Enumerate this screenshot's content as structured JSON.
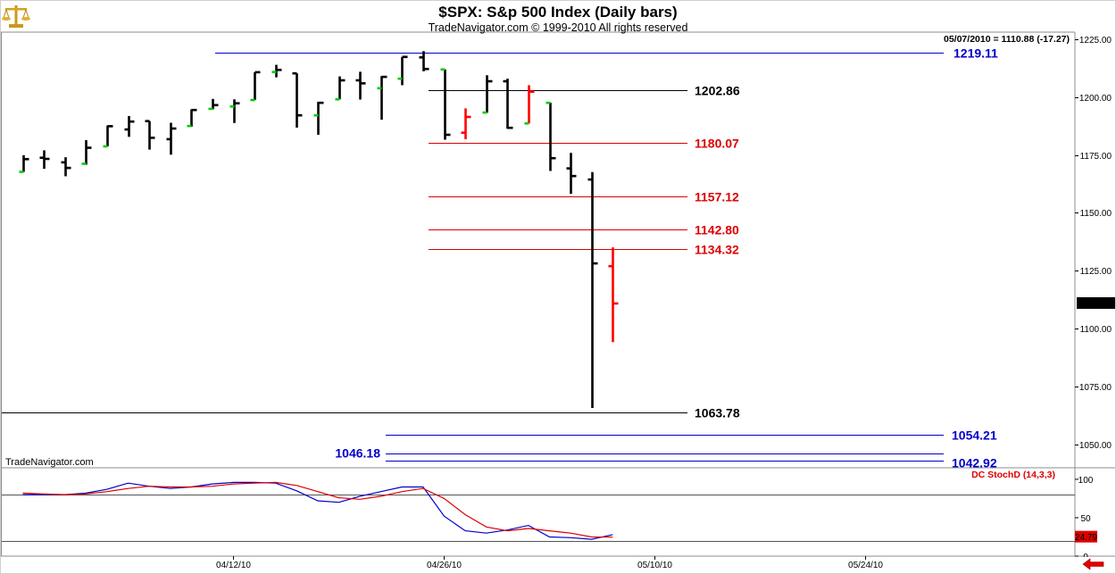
{
  "header": {
    "title": "$SPX:  S&p 500 Index  (Daily bars)",
    "subtitle": "TradeNavigator.com © 1999-2010 All rights reserved",
    "quote": "05/07/2010 = 1110.88 (-17.27)",
    "watermark": "TradeNavigator.com",
    "logo_icon": "golden-scale-icon",
    "back_icon": "red-left-arrow-icon"
  },
  "colors": {
    "bar": "#000000",
    "bar_red": "#ff0000",
    "tick_green": "#00cc00",
    "blue_level": "#0000cc",
    "red_level": "#dd0000",
    "black_level": "#000000",
    "stoch_k": "#0000cc",
    "stoch_d": "#dd0000"
  },
  "chart_data": [
    {
      "type": "ohlc",
      "title": "$SPX:  S&p 500 Index  (Daily bars)",
      "ylim": [
        1040,
        1228
      ],
      "y_ticks": [
        1050,
        1075,
        1100,
        1125,
        1150,
        1175,
        1200,
        1225
      ],
      "y_tick_labels": [
        "1050.00",
        "1075.00",
        "1100.00",
        "1125.00",
        "1150.00",
        "1175.00",
        "1200.00",
        "1225.00"
      ],
      "last_value_label": "1110.88",
      "x_labels": [
        "04/12/10",
        "04/26/10",
        "05/10/10",
        "05/24/10"
      ],
      "grid": false,
      "bars": [
        {
          "date": "03/29/10",
          "open": 1167.7,
          "high": 1174.9,
          "low": 1167.7,
          "close": 1173.2
        },
        {
          "date": "03/30/10",
          "open": 1173.8,
          "high": 1177.0,
          "low": 1169.0,
          "close": 1173.3
        },
        {
          "date": "03/31/10",
          "open": 1171.8,
          "high": 1174.0,
          "low": 1165.8,
          "close": 1169.4
        },
        {
          "date": "04/01/10",
          "open": 1171.2,
          "high": 1181.4,
          "low": 1170.8,
          "close": 1178.1
        },
        {
          "date": "04/05/10",
          "open": 1178.7,
          "high": 1187.7,
          "low": 1178.7,
          "close": 1187.4
        },
        {
          "date": "04/06/10",
          "open": 1186.0,
          "high": 1191.8,
          "low": 1182.8,
          "close": 1189.4
        },
        {
          "date": "04/07/10",
          "open": 1189.6,
          "high": 1189.6,
          "low": 1177.3,
          "close": 1182.4
        },
        {
          "date": "04/08/10",
          "open": 1181.8,
          "high": 1188.9,
          "low": 1175.1,
          "close": 1186.4
        },
        {
          "date": "04/09/10",
          "open": 1187.5,
          "high": 1194.7,
          "low": 1187.2,
          "close": 1194.4
        },
        {
          "date": "04/12/10",
          "open": 1194.9,
          "high": 1199.2,
          "low": 1194.7,
          "close": 1196.5
        },
        {
          "date": "04/13/10",
          "open": 1195.9,
          "high": 1199.0,
          "low": 1188.8,
          "close": 1197.3
        },
        {
          "date": "04/14/10",
          "open": 1198.7,
          "high": 1210.7,
          "low": 1198.7,
          "close": 1210.7
        },
        {
          "date": "04/15/10",
          "open": 1210.8,
          "high": 1213.9,
          "low": 1208.5,
          "close": 1211.7
        },
        {
          "date": "04/16/10",
          "open": 1210.2,
          "high": 1210.2,
          "low": 1186.8,
          "close": 1192.1
        },
        {
          "date": "04/19/10",
          "open": 1192.1,
          "high": 1197.9,
          "low": 1183.7,
          "close": 1197.5
        },
        {
          "date": "04/20/10",
          "open": 1199.0,
          "high": 1208.9,
          "low": 1199.0,
          "close": 1207.2
        },
        {
          "date": "04/21/10",
          "open": 1207.2,
          "high": 1210.9,
          "low": 1198.9,
          "close": 1205.9
        },
        {
          "date": "04/22/10",
          "open": 1203.8,
          "high": 1209.0,
          "low": 1190.2,
          "close": 1208.7
        },
        {
          "date": "04/23/10",
          "open": 1207.9,
          "high": 1217.3,
          "low": 1205.1,
          "close": 1217.3
        },
        {
          "date": "04/26/10",
          "open": 1217.1,
          "high": 1219.8,
          "low": 1211.1,
          "close": 1212.1
        },
        {
          "date": "04/27/10",
          "open": 1211.9,
          "high": 1211.9,
          "low": 1181.6,
          "close": 1183.7
        },
        {
          "date": "04/28/10",
          "open": 1184.6,
          "high": 1195.1,
          "low": 1181.8,
          "close": 1191.4
        },
        {
          "date": "04/29/10",
          "open": 1193.3,
          "high": 1209.4,
          "low": 1193.2,
          "close": 1206.8
        },
        {
          "date": "04/30/10",
          "open": 1206.8,
          "high": 1207.9,
          "low": 1186.3,
          "close": 1186.7
        },
        {
          "date": "05/03/10",
          "open": 1188.6,
          "high": 1205.1,
          "low": 1188.6,
          "close": 1202.3
        },
        {
          "date": "05/04/10",
          "open": 1197.5,
          "high": 1197.5,
          "low": 1168.1,
          "close": 1173.6
        },
        {
          "date": "05/05/10",
          "open": 1169.2,
          "high": 1175.9,
          "low": 1158.2,
          "close": 1165.9
        },
        {
          "date": "05/06/10",
          "open": 1164.4,
          "high": 1167.6,
          "low": 1065.8,
          "close": 1128.2
        },
        {
          "date": "05/07/10",
          "open": 1127.0,
          "high": 1135.1,
          "low": 1094.2,
          "close": 1110.9
        }
      ],
      "bar_colors": [
        "k",
        "k",
        "k",
        "k",
        "k",
        "k",
        "k",
        "k",
        "k",
        "k",
        "k",
        "k",
        "k",
        "k",
        "k",
        "k",
        "k",
        "k",
        "k",
        "k",
        "k",
        "r",
        "k",
        "k",
        "r",
        "k",
        "k",
        "k",
        "r"
      ],
      "green_tick_bars": [
        0,
        3,
        4,
        8,
        9,
        10,
        11,
        12,
        14,
        15,
        17,
        18,
        20,
        22,
        24,
        25
      ],
      "levels": [
        {
          "label": "1219.11",
          "value": 1219.11,
          "color": "blue"
        },
        {
          "label": "1202.86",
          "value": 1202.86,
          "color": "black"
        },
        {
          "label": "1180.07",
          "value": 1180.07,
          "color": "red"
        },
        {
          "label": "1157.12",
          "value": 1157.12,
          "color": "red"
        },
        {
          "label": "1142.80",
          "value": 1142.8,
          "color": "red"
        },
        {
          "label": "1134.32",
          "value": 1134.32,
          "color": "red"
        },
        {
          "label": "1063.78",
          "value": 1063.78,
          "color": "black"
        },
        {
          "label": "1054.21",
          "value": 1054.21,
          "color": "blue"
        },
        {
          "label": "1046.18",
          "value": 1046.18,
          "color": "blue"
        },
        {
          "label": "1042.92",
          "value": 1042.92,
          "color": "blue"
        }
      ]
    },
    {
      "type": "line",
      "title": "DC StochD (14,3,3)",
      "ylim": [
        0,
        115
      ],
      "y_ticks": [
        0,
        50,
        100
      ],
      "y_tick_labels": [
        "0",
        "50",
        "100"
      ],
      "reference_lines": [
        20,
        80
      ],
      "last_value_label": "24.79",
      "series": [
        {
          "name": "K",
          "color": "#0000cc",
          "values": [
            80,
            80,
            80,
            82,
            87,
            95,
            91,
            88,
            90,
            94,
            96,
            96,
            95,
            85,
            72,
            70,
            78,
            84,
            90,
            90,
            52,
            33,
            30,
            34,
            40,
            25,
            24,
            22,
            28
          ]
        },
        {
          "name": "D",
          "color": "#dd0000",
          "values": [
            82,
            81,
            80,
            81,
            84,
            88,
            91,
            90,
            90,
            91,
            94,
            95,
            96,
            92,
            84,
            76,
            74,
            78,
            84,
            88,
            75,
            54,
            38,
            33,
            36,
            33,
            30,
            25,
            24.79
          ]
        }
      ]
    }
  ]
}
